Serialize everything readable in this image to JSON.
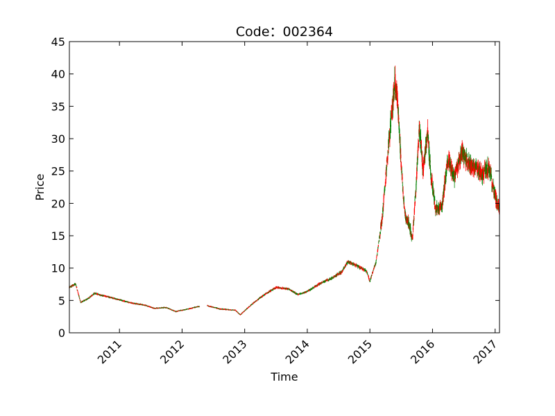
{
  "chart_data": {
    "type": "candlestick",
    "title": "Code：002364",
    "xlabel": "Time",
    "ylabel": "Price",
    "xlim": [
      2010.2,
      2017.07
    ],
    "ylim": [
      0,
      45
    ],
    "y_ticks": [
      0,
      5,
      10,
      15,
      20,
      25,
      30,
      35,
      40,
      45
    ],
    "x_ticks": [
      2011,
      2012,
      2013,
      2014,
      2015,
      2016,
      2017
    ],
    "x_tick_labels": [
      "2011",
      "2012",
      "2013",
      "2014",
      "2015",
      "2016",
      "2017"
    ],
    "x_tick_rotation": 45,
    "grid": false,
    "legend": "none",
    "colors": {
      "up": "#ff0000",
      "down": "#008000",
      "axes": "#000000"
    },
    "trend": [
      [
        2010.2,
        7.0
      ],
      [
        2010.3,
        7.6
      ],
      [
        2010.38,
        4.7
      ],
      [
        2010.5,
        5.3
      ],
      [
        2010.6,
        6.1
      ],
      [
        2010.8,
        5.6
      ],
      [
        2011.0,
        5.1
      ],
      [
        2011.2,
        4.6
      ],
      [
        2011.4,
        4.3
      ],
      [
        2011.55,
        3.8
      ],
      [
        2011.75,
        3.9
      ],
      [
        2011.9,
        3.3
      ],
      [
        2012.1,
        3.7
      ],
      [
        2012.28,
        4.1
      ],
      [
        2012.3,
        null
      ],
      [
        2012.4,
        4.2
      ],
      [
        2012.6,
        3.7
      ],
      [
        2012.85,
        3.5
      ],
      [
        2012.93,
        2.8
      ],
      [
        2013.1,
        4.3
      ],
      [
        2013.3,
        5.8
      ],
      [
        2013.5,
        7.0
      ],
      [
        2013.7,
        6.8
      ],
      [
        2013.85,
        5.9
      ],
      [
        2014.0,
        6.4
      ],
      [
        2014.2,
        7.6
      ],
      [
        2014.4,
        8.5
      ],
      [
        2014.55,
        9.4
      ],
      [
        2014.65,
        11.0
      ],
      [
        2014.8,
        10.3
      ],
      [
        2014.95,
        9.5
      ],
      [
        2015.0,
        8.0
      ],
      [
        2015.1,
        11.0
      ],
      [
        2015.2,
        18.0
      ],
      [
        2015.28,
        27.0
      ],
      [
        2015.35,
        34.0
      ],
      [
        2015.4,
        39.0
      ],
      [
        2015.44,
        36.0
      ],
      [
        2015.5,
        26.0
      ],
      [
        2015.56,
        18.0
      ],
      [
        2015.62,
        17.0
      ],
      [
        2015.68,
        14.5
      ],
      [
        2015.74,
        23.0
      ],
      [
        2015.79,
        32.0
      ],
      [
        2015.85,
        25.0
      ],
      [
        2015.92,
        31.0
      ],
      [
        2015.98,
        24.0
      ],
      [
        2016.05,
        19.0
      ],
      [
        2016.15,
        19.5
      ],
      [
        2016.25,
        27.0
      ],
      [
        2016.35,
        24.0
      ],
      [
        2016.47,
        28.0
      ],
      [
        2016.58,
        26.0
      ],
      [
        2016.7,
        25.5
      ],
      [
        2016.8,
        24.5
      ],
      [
        2016.9,
        25.5
      ],
      [
        2017.0,
        21.0
      ],
      [
        2017.07,
        19.0
      ]
    ]
  }
}
